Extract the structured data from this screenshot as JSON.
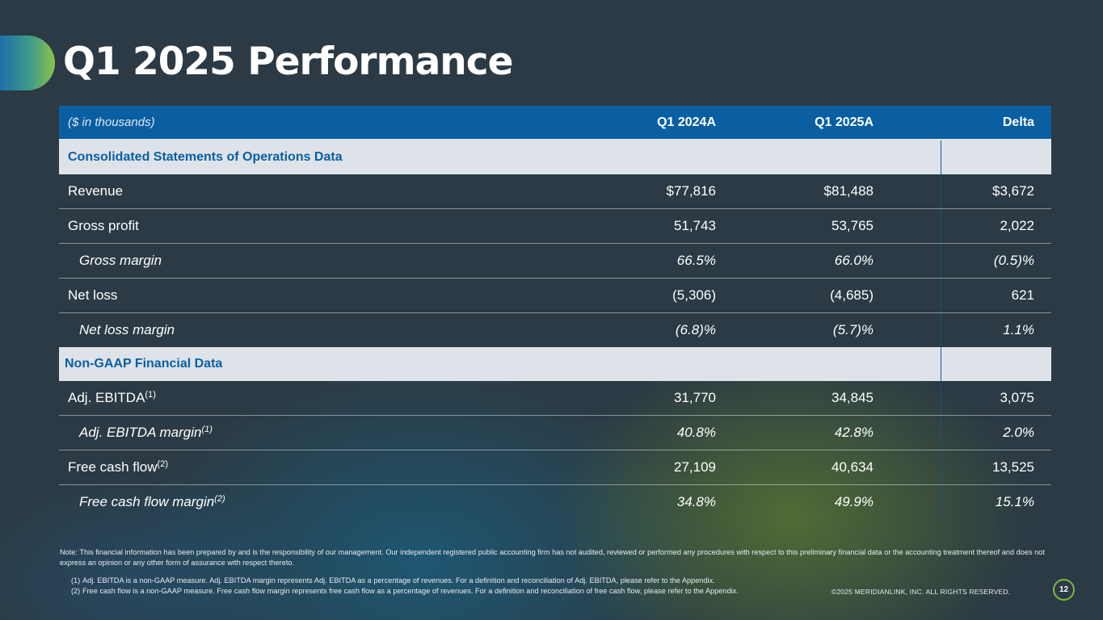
{
  "page": {
    "title": "Q1 2025 Performance",
    "page_number": "12",
    "copyright": "©2025 MERIDIANLINK, INC. ALL RIGHTS RESERVED."
  },
  "table": {
    "header": {
      "units": "($ in thousands)",
      "col_q1_2024": "Q1 2024A",
      "col_q1_2025": "Q1 2025A",
      "col_delta": "Delta"
    },
    "section_ops": "Consolidated Statements of Operations Data",
    "section_nongaap": "Non-GAAP Financial Data",
    "rows": [
      {
        "label": "Revenue",
        "sup": "",
        "q1_2024": "$77,816",
        "q1_2025": "$81,488",
        "delta": "$3,672"
      },
      {
        "label": "Gross profit",
        "sup": "",
        "q1_2024": "51,743",
        "q1_2025": "53,765",
        "delta": "2,022"
      },
      {
        "label": "Gross margin",
        "sup": "",
        "q1_2024": "66.5%",
        "q1_2025": "66.0%",
        "delta": "(0.5)%"
      },
      {
        "label": "Net loss",
        "sup": "",
        "q1_2024": "(5,306)",
        "q1_2025": "(4,685)",
        "delta": "621"
      },
      {
        "label": "Net loss margin",
        "sup": "",
        "q1_2024": "(6.8)%",
        "q1_2025": "(5.7)%",
        "delta": "1.1%"
      },
      {
        "label": "Adj. EBITDA",
        "sup": "(1)",
        "q1_2024": "31,770",
        "q1_2025": "34,845",
        "delta": "3,075"
      },
      {
        "label": "Adj. EBITDA margin",
        "sup": "(1)",
        "q1_2024": "40.8%",
        "q1_2025": "42.8%",
        "delta": "2.0%"
      },
      {
        "label": "Free cash flow",
        "sup": "(2)",
        "q1_2024": "27,109",
        "q1_2025": "40,634",
        "delta": "13,525"
      },
      {
        "label": "Free cash flow margin",
        "sup": "(2)",
        "q1_2024": "34.8%",
        "q1_2025": "49.9%",
        "delta": "15.1%"
      }
    ]
  },
  "notes": {
    "note": "Note: This financial information has been prepared by and is the responsibility of our management. Our independent registered public accounting firm has not audited, reviewed or performed any procedures with respect to this preliminary financial data or the accounting treatment thereof and does not express an opinion or any other form of assurance with respect thereto.",
    "footnotes": [
      {
        "mark": "(1)",
        "text": "Adj. EBITDA is a non-GAAP measure. Adj. EBITDA margin represents Adj. EBITDA as a percentage of revenues. For a definition and reconciliation of Adj. EBITDA, please refer to the Appendix."
      },
      {
        "mark": "(2)",
        "text": "Free cash flow is a non-GAAP measure. Free cash flow margin represents free cash flow as a percentage of revenues. For a definition and reconciliation of free cash flow, please refer to the Appendix."
      }
    ]
  },
  "colors": {
    "header_blue": "#0a5fa2",
    "section_bg": "#dde3e9",
    "accent_green": "#7fb842",
    "background": "#2b3a44"
  }
}
